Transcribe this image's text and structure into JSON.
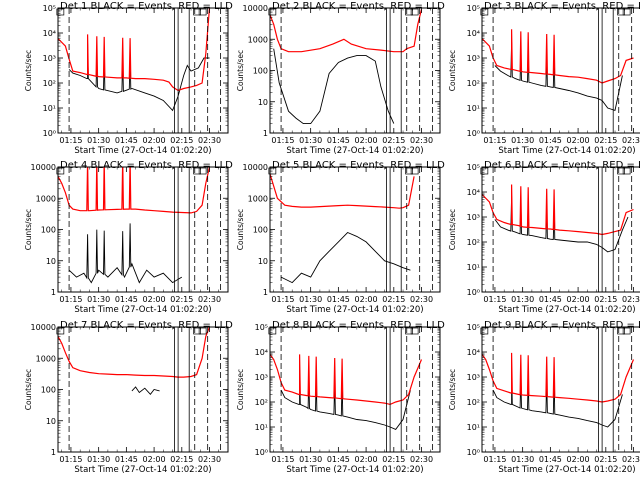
{
  "chart_data": {
    "type": "line",
    "x_unit": "time (HH:MM, 27-Oct-14)",
    "xlim": [
      "01:08",
      "02:40"
    ],
    "x_ticks": [
      "01:15",
      "01:30",
      "01:45",
      "02:00",
      "02:15",
      "02:30"
    ],
    "xlabel": "Start Time (27-Oct-14 01:02:20)",
    "ylabel": "Counts/sec",
    "y_scale": "log",
    "legend_text": "BLACK = Events, RED = LLD",
    "vertical_markers": {
      "solid": [
        "02:11",
        "02:13",
        "02:19"
      ],
      "dashed": [
        "01:14",
        "02:22",
        "02:29",
        "02:36"
      ],
      "box_labels": [
        "01:09",
        "02:23",
        "02:26"
      ]
    },
    "panels": [
      {
        "title": "Det 1",
        "ylim": [
          1,
          100000
        ],
        "y_ticks": [
          "10⁰",
          "10¹",
          "10²",
          "10³",
          "10⁴",
          "10⁵"
        ],
        "series": [
          {
            "color": "#000000",
            "x": [
              "01:14",
              "01:16",
              "01:20",
              "01:24",
              "01:30",
              "01:40",
              "01:48",
              "01:55",
              "02:00",
              "02:05",
              "02:10",
              "02:13",
              "02:16",
              "02:18",
              "02:20",
              "02:24",
              "02:27",
              "02:30"
            ],
            "y": [
              350,
              250,
              200,
              150,
              60,
              40,
              60,
              40,
              30,
              20,
              8,
              30,
              200,
              500,
              300,
              400,
              1000,
              1000
            ]
          },
          {
            "color": "#ff0000",
            "x": [
              "01:08",
              "01:12",
              "01:14",
              "01:16",
              "01:20",
              "01:24",
              "01:28",
              "01:30",
              "01:35",
              "01:40",
              "01:45",
              "01:50",
              "01:55",
              "02:00",
              "02:05",
              "02:08",
              "02:10",
              "02:13",
              "02:16",
              "02:20",
              "02:23",
              "02:26",
              "02:28",
              "02:30"
            ],
            "y": [
              6000,
              3000,
              900,
              300,
              260,
              220,
              190,
              180,
              170,
              160,
              160,
              150,
              150,
              140,
              130,
              110,
              70,
              50,
              60,
              70,
              80,
              100,
              1500,
              100000
            ]
          }
        ]
      },
      {
        "title": "Det 2",
        "ylim": [
          1,
          10000
        ],
        "y_ticks": [
          "1",
          "10",
          "100",
          "1000",
          "10000"
        ],
        "series": [
          {
            "color": "#000000",
            "x": [
              "01:10",
              "01:13",
              "01:18",
              "01:22",
              "01:26",
              "01:30",
              "01:35",
              "01:40",
              "01:45",
              "01:50",
              "01:55",
              "02:00",
              "02:05",
              "02:08",
              "02:12",
              "02:15"
            ],
            "y": [
              500,
              40,
              5,
              3,
              2,
              2,
              5,
              80,
              180,
              250,
              300,
              300,
              200,
              30,
              5,
              2
            ]
          },
          {
            "color": "#ff0000",
            "x": [
              "01:08",
              "01:10",
              "01:12",
              "01:14",
              "01:18",
              "01:25",
              "01:35",
              "01:42",
              "01:48",
              "01:52",
              "02:00",
              "02:08",
              "02:15",
              "02:20",
              "02:22",
              "02:26",
              "02:28",
              "02:30"
            ],
            "y": [
              6000,
              3000,
              1000,
              500,
              400,
              400,
              500,
              700,
              1000,
              700,
              500,
              450,
              400,
              400,
              500,
              600,
              3000,
              9000
            ]
          }
        ]
      },
      {
        "title": "Det 3",
        "ylim": [
          1,
          100000
        ],
        "y_ticks": [
          "10⁰",
          "10¹",
          "10²",
          "10³",
          "10⁴",
          "10⁵"
        ],
        "series": [
          {
            "color": "#000000",
            "x": [
              "01:15",
              "01:18",
              "01:22",
              "01:26",
              "01:30",
              "01:35",
              "01:40",
              "01:45",
              "01:50",
              "01:55",
              "02:00",
              "02:05",
              "02:10",
              "02:13",
              "02:16",
              "02:20",
              "02:24"
            ],
            "y": [
              500,
              300,
              200,
              150,
              120,
              100,
              80,
              70,
              60,
              50,
              40,
              30,
              25,
              20,
              10,
              8,
              200
            ]
          },
          {
            "color": "#ff0000",
            "x": [
              "01:08",
              "01:12",
              "01:14",
              "01:16",
              "01:20",
              "01:24",
              "01:28",
              "01:30",
              "01:35",
              "01:40",
              "01:45",
              "01:50",
              "01:55",
              "02:00",
              "02:05",
              "02:10",
              "02:13",
              "02:16",
              "02:20",
              "02:23",
              "02:26",
              "02:30"
            ],
            "y": [
              6000,
              3000,
              1000,
              500,
              400,
              350,
              300,
              280,
              260,
              240,
              220,
              200,
              180,
              170,
              150,
              130,
              100,
              120,
              150,
              200,
              800,
              1000
            ]
          }
        ]
      },
      {
        "title": "Det 4",
        "ylim": [
          1,
          10000
        ],
        "y_ticks": [
          "1",
          "10",
          "100",
          "1000",
          "10000"
        ],
        "series": [
          {
            "color": "#000000",
            "x": [
              "01:14",
              "01:18",
              "01:22",
              "01:26",
              "01:30",
              "01:35",
              "01:40",
              "01:44",
              "01:48",
              "01:52",
              "01:56",
              "02:00",
              "02:05",
              "02:10",
              "02:15"
            ],
            "y": [
              5,
              3,
              4,
              2,
              5,
              3,
              6,
              3,
              8,
              2,
              5,
              3,
              4,
              2,
              3
            ]
          },
          {
            "color": "#ff0000",
            "x": [
              "01:08",
              "01:10",
              "01:12",
              "01:14",
              "01:16",
              "01:20",
              "01:25",
              "01:30",
              "01:35",
              "01:40",
              "01:45",
              "01:50",
              "01:55",
              "02:00",
              "02:05",
              "02:10",
              "02:15",
              "02:20",
              "02:23",
              "02:26",
              "02:28",
              "02:30"
            ],
            "y": [
              5000,
              3000,
              1500,
              600,
              450,
              400,
              400,
              420,
              430,
              440,
              450,
              450,
              420,
              400,
              380,
              360,
              350,
              340,
              380,
              600,
              3000,
              10000
            ]
          }
        ]
      },
      {
        "title": "Det 5",
        "ylim": [
          1,
          10000
        ],
        "y_ticks": [
          "1",
          "10",
          "100",
          "1000",
          "10000"
        ],
        "series": [
          {
            "color": "#000000",
            "x": [
              "01:14",
              "01:20",
              "01:25",
              "01:30",
              "01:35",
              "01:40",
              "01:45",
              "01:50",
              "01:55",
              "02:00",
              "02:05",
              "02:10",
              "02:15",
              "02:20",
              "02:24"
            ],
            "y": [
              3,
              2,
              4,
              3,
              10,
              20,
              40,
              80,
              60,
              40,
              20,
              10,
              8,
              6,
              5
            ]
          },
          {
            "color": "#ff0000",
            "x": [
              "01:08",
              "01:12",
              "01:16",
              "01:20",
              "01:25",
              "01:30",
              "01:35",
              "01:40",
              "01:45",
              "01:50",
              "01:55",
              "02:00",
              "02:05",
              "02:10",
              "02:15",
              "02:18",
              "02:20",
              "02:23",
              "02:26"
            ],
            "y": [
              6000,
              1000,
              600,
              550,
              520,
              520,
              540,
              560,
              580,
              600,
              580,
              560,
              540,
              520,
              500,
              480,
              500,
              600,
              5000
            ]
          }
        ]
      },
      {
        "title": "Det 6",
        "ylim": [
          1,
          100000
        ],
        "y_ticks": [
          "10⁰",
          "10¹",
          "10²",
          "10³",
          "10⁴",
          "10⁵"
        ],
        "series": [
          {
            "color": "#000000",
            "x": [
              "01:15",
              "01:18",
              "01:22",
              "01:26",
              "01:30",
              "01:35",
              "01:40",
              "01:45",
              "01:50",
              "01:55",
              "02:00",
              "02:05",
              "02:10",
              "02:13",
              "02:16",
              "02:20",
              "02:24",
              "02:27"
            ],
            "y": [
              800,
              400,
              300,
              250,
              200,
              180,
              150,
              130,
              120,
              110,
              100,
              100,
              80,
              60,
              40,
              50,
              300,
              1000
            ]
          },
          {
            "color": "#ff0000",
            "x": [
              "01:08",
              "01:12",
              "01:14",
              "01:16",
              "01:20",
              "01:24",
              "01:28",
              "01:30",
              "01:35",
              "01:40",
              "01:45",
              "01:50",
              "01:55",
              "02:00",
              "02:05",
              "02:10",
              "02:13",
              "02:16",
              "02:20",
              "02:23",
              "02:26",
              "02:30"
            ],
            "y": [
              8000,
              4000,
              1500,
              800,
              600,
              500,
              450,
              400,
              380,
              350,
              330,
              300,
              280,
              260,
              240,
              220,
              200,
              220,
              260,
              300,
              1500,
              2000
            ]
          }
        ]
      },
      {
        "title": "Det 7",
        "ylim": [
          1,
          10000
        ],
        "y_ticks": [
          "1",
          "10",
          "100",
          "1000",
          "10000"
        ],
        "series": [
          {
            "color": "#000000",
            "x": [
              "01:48",
              "01:50",
              "01:52",
              "01:55",
              "01:58",
              "02:00",
              "02:03"
            ],
            "y": [
              90,
              120,
              80,
              110,
              70,
              100,
              90
            ]
          },
          {
            "color": "#ff0000",
            "x": [
              "01:08",
              "01:10",
              "01:12",
              "01:14",
              "01:16",
              "01:20",
              "01:25",
              "01:30",
              "01:35",
              "01:40",
              "01:45",
              "01:50",
              "01:55",
              "02:00",
              "02:05",
              "02:10",
              "02:13",
              "02:16",
              "02:20",
              "02:23",
              "02:26",
              "02:28",
              "02:30"
            ],
            "y": [
              5000,
              3000,
              1500,
              800,
              500,
              400,
              350,
              320,
              310,
              300,
              300,
              290,
              280,
              280,
              270,
              260,
              250,
              250,
              260,
              300,
              1000,
              5000,
              10000
            ]
          }
        ]
      },
      {
        "title": "Det 8",
        "ylim": [
          1,
          100000
        ],
        "y_ticks": [
          "10⁰",
          "10¹",
          "10²",
          "10³",
          "10⁴",
          "10⁵"
        ],
        "series": [
          {
            "color": "#000000",
            "x": [
              "01:14",
              "01:16",
              "01:20",
              "01:24",
              "01:28",
              "01:30",
              "01:35",
              "01:40",
              "01:45",
              "01:50",
              "01:55",
              "02:00",
              "02:05",
              "02:10",
              "02:13",
              "02:16",
              "02:20",
              "02:24"
            ],
            "y": [
              300,
              150,
              100,
              80,
              60,
              50,
              40,
              35,
              30,
              25,
              20,
              18,
              15,
              12,
              10,
              8,
              20,
              300
            ]
          },
          {
            "color": "#ff0000",
            "x": [
              "01:08",
              "01:10",
              "01:12",
              "01:14",
              "01:16",
              "01:20",
              "01:24",
              "01:28",
              "01:30",
              "01:35",
              "01:40",
              "01:45",
              "01:50",
              "01:55",
              "02:00",
              "02:05",
              "02:10",
              "02:13",
              "02:16",
              "02:20",
              "02:23",
              "02:26",
              "02:30"
            ],
            "y": [
              8000,
              5000,
              2000,
              600,
              300,
              250,
              200,
              180,
              170,
              160,
              150,
              140,
              130,
              120,
              110,
              100,
              90,
              80,
              100,
              120,
              200,
              1000,
              5000
            ]
          }
        ]
      },
      {
        "title": "Det 9",
        "ylim": [
          1,
          100000
        ],
        "y_ticks": [
          "10⁰",
          "10¹",
          "10²",
          "10³",
          "10⁴",
          "10⁵"
        ],
        "series": [
          {
            "color": "#000000",
            "x": [
              "01:14",
              "01:16",
              "01:20",
              "01:24",
              "01:28",
              "01:30",
              "01:35",
              "01:40",
              "01:45",
              "01:50",
              "01:55",
              "02:00",
              "02:05",
              "02:10",
              "02:13",
              "02:16",
              "02:20",
              "02:24"
            ],
            "y": [
              300,
              150,
              100,
              80,
              60,
              55,
              45,
              40,
              35,
              30,
              25,
              22,
              18,
              15,
              12,
              10,
              20,
              200
            ]
          },
          {
            "color": "#ff0000",
            "x": [
              "01:08",
              "01:10",
              "01:12",
              "01:14",
              "01:16",
              "01:20",
              "01:24",
              "01:28",
              "01:30",
              "01:35",
              "01:40",
              "01:45",
              "01:50",
              "01:55",
              "02:00",
              "02:05",
              "02:10",
              "02:13",
              "02:16",
              "02:20",
              "02:23",
              "02:26",
              "02:30"
            ],
            "y": [
              8000,
              5000,
              2000,
              700,
              350,
              280,
              230,
              200,
              190,
              180,
              170,
              160,
              150,
              140,
              130,
              120,
              110,
              100,
              110,
              130,
              200,
              1000,
              5000
            ]
          }
        ]
      }
    ],
    "spikes": {
      "panels": [
        "Det 1",
        "Det 3",
        "Det 6",
        "Det 8",
        "Det 9",
        "Det 4"
      ],
      "times": [
        "01:24",
        "01:29",
        "01:33",
        "01:43",
        "01:47"
      ]
    }
  }
}
